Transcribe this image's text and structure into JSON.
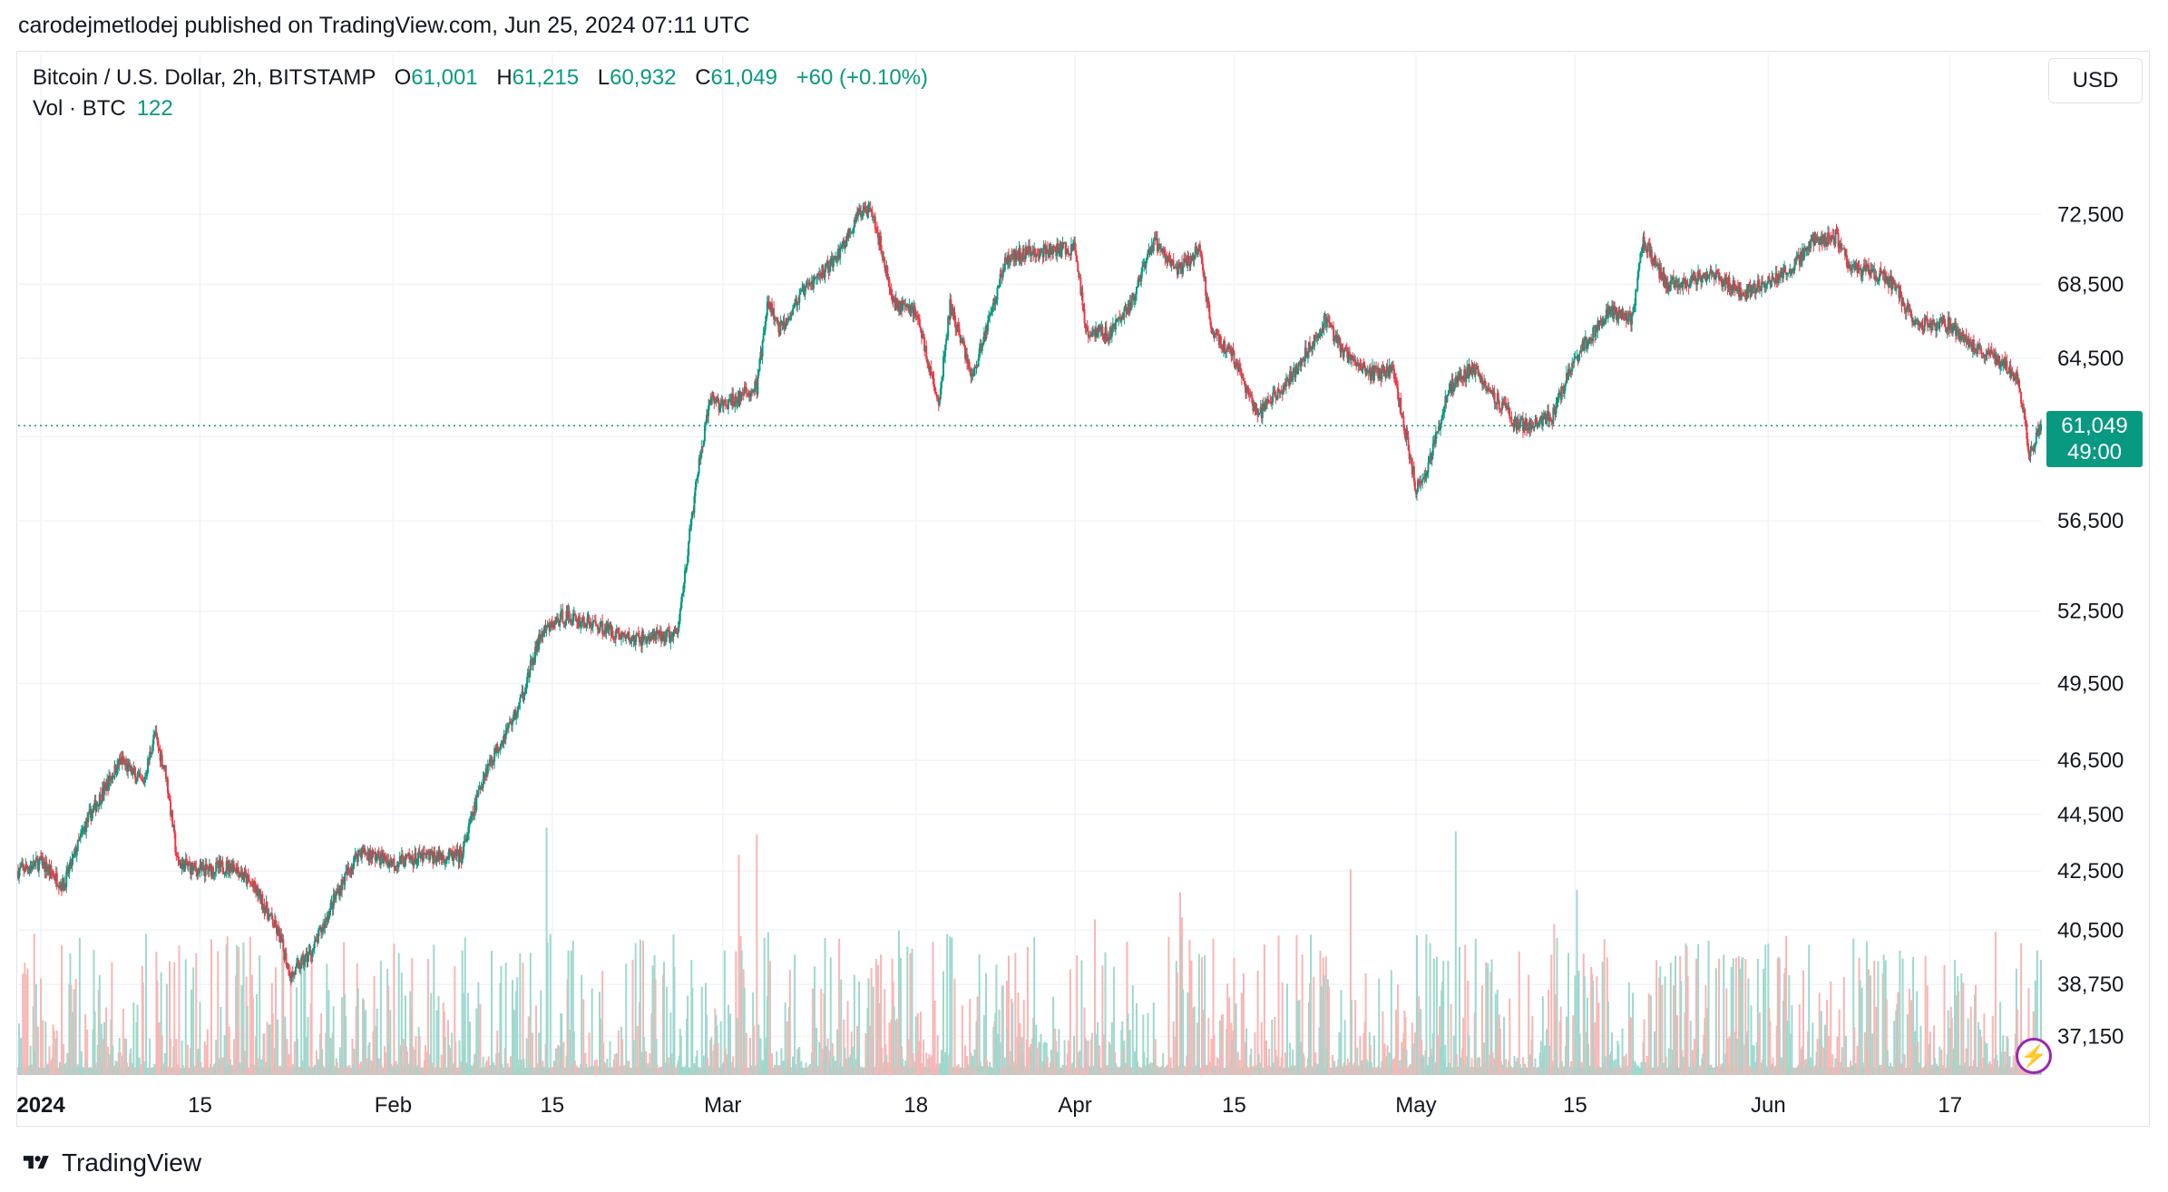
{
  "header": {
    "published_line": "carodejmetlodej published on TradingView.com, Jun 25, 2024 07:11 UTC"
  },
  "legend": {
    "symbol": "Bitcoin / U.S. Dollar, 2h, BITSTAMP",
    "open_key": "O",
    "open": "61,001",
    "high_key": "H",
    "high": "61,215",
    "low_key": "L",
    "low": "60,932",
    "close_key": "C",
    "close": "61,049",
    "change": "+60 (+0.10%)",
    "volume_label": "Vol · BTC",
    "volume_value": "122"
  },
  "currency_button": "USD",
  "price_badge": {
    "price": "61,049",
    "countdown": "49:00"
  },
  "footer": {
    "brand": "TradingView"
  },
  "colors": {
    "up": "#089981",
    "down": "#f23645",
    "up_vol": "#9fd8cd",
    "down_vol": "#f7b6b5",
    "grid": "#f0f3fa"
  },
  "chart_data": {
    "type": "candlestick",
    "title": "Bitcoin / U.S. Dollar, 2h, BITSTAMP",
    "y_scale": "log",
    "ylim": [
      36000,
      79000
    ],
    "y_ticks": [
      72500,
      68500,
      64500,
      60500,
      56500,
      52500,
      49500,
      46500,
      44500,
      42500,
      40500,
      38750,
      37150
    ],
    "y_tick_labels": [
      "72,500",
      "68,500",
      "64,500",
      "",
      "56,500",
      "52,500",
      "49,500",
      "46,500",
      "44,500",
      "42,500",
      "40,500",
      "38,750",
      "37,150"
    ],
    "x_range": [
      "2023-12-30",
      "2024-06-25"
    ],
    "x_ticks": [
      {
        "date": "2024-01-01",
        "label": "2024"
      },
      {
        "date": "2024-01-15",
        "label": "15"
      },
      {
        "date": "2024-02-01",
        "label": "Feb"
      },
      {
        "date": "2024-02-15",
        "label": "15"
      },
      {
        "date": "2024-03-01",
        "label": "Mar"
      },
      {
        "date": "2024-03-18",
        "label": "18"
      },
      {
        "date": "2024-04-01",
        "label": "Apr"
      },
      {
        "date": "2024-04-15",
        "label": "15"
      },
      {
        "date": "2024-05-01",
        "label": "May"
      },
      {
        "date": "2024-05-15",
        "label": "15"
      },
      {
        "date": "2024-06-01",
        "label": "Jun"
      },
      {
        "date": "2024-06-17",
        "label": "17"
      }
    ],
    "last_price": 61049,
    "price_path": [
      [
        "2023-12-30",
        42500
      ],
      [
        "2024-01-01",
        42800
      ],
      [
        "2024-01-03",
        42000
      ],
      [
        "2024-01-05",
        44200
      ],
      [
        "2024-01-08",
        46500
      ],
      [
        "2024-01-10",
        45600
      ],
      [
        "2024-01-11",
        47500
      ],
      [
        "2024-01-12",
        46000
      ],
      [
        "2024-01-13",
        42800
      ],
      [
        "2024-01-15",
        42500
      ],
      [
        "2024-01-18",
        42700
      ],
      [
        "2024-01-20",
        41800
      ],
      [
        "2024-01-22",
        40300
      ],
      [
        "2024-01-23",
        39000
      ],
      [
        "2024-01-25",
        39900
      ],
      [
        "2024-01-27",
        41700
      ],
      [
        "2024-01-29",
        43200
      ],
      [
        "2024-02-01",
        42800
      ],
      [
        "2024-02-04",
        43000
      ],
      [
        "2024-02-07",
        43000
      ],
      [
        "2024-02-09",
        46000
      ],
      [
        "2024-02-12",
        48500
      ],
      [
        "2024-02-14",
        51500
      ],
      [
        "2024-02-16",
        52300
      ],
      [
        "2024-02-19",
        51900
      ],
      [
        "2024-02-22",
        51300
      ],
      [
        "2024-02-26",
        51500
      ],
      [
        "2024-02-27",
        55500
      ],
      [
        "2024-02-28",
        59500
      ],
      [
        "2024-02-29",
        62500
      ],
      [
        "2024-03-01",
        62000
      ],
      [
        "2024-03-04",
        63000
      ],
      [
        "2024-03-05",
        67500
      ],
      [
        "2024-03-06",
        66000
      ],
      [
        "2024-03-08",
        68000
      ],
      [
        "2024-03-11",
        70000
      ],
      [
        "2024-03-13",
        72500
      ],
      [
        "2024-03-14",
        73200
      ],
      [
        "2024-03-16",
        67500
      ],
      [
        "2024-03-18",
        67000
      ],
      [
        "2024-03-20",
        62000
      ],
      [
        "2024-03-21",
        67300
      ],
      [
        "2024-03-23",
        63500
      ],
      [
        "2024-03-26",
        70000
      ],
      [
        "2024-03-28",
        70300
      ],
      [
        "2024-04-01",
        70500
      ],
      [
        "2024-04-02",
        66000
      ],
      [
        "2024-04-04",
        65800
      ],
      [
        "2024-04-06",
        67500
      ],
      [
        "2024-04-08",
        71000
      ],
      [
        "2024-04-10",
        69200
      ],
      [
        "2024-04-12",
        70500
      ],
      [
        "2024-04-13",
        66000
      ],
      [
        "2024-04-15",
        64500
      ],
      [
        "2024-04-17",
        61500
      ],
      [
        "2024-04-20",
        63500
      ],
      [
        "2024-04-23",
        66500
      ],
      [
        "2024-04-25",
        64500
      ],
      [
        "2024-04-27",
        63700
      ],
      [
        "2024-04-29",
        63800
      ],
      [
        "2024-05-01",
        58000
      ],
      [
        "2024-05-02",
        59000
      ],
      [
        "2024-05-04",
        63000
      ],
      [
        "2024-05-06",
        64000
      ],
      [
        "2024-05-08",
        62500
      ],
      [
        "2024-05-10",
        61000
      ],
      [
        "2024-05-13",
        61500
      ],
      [
        "2024-05-15",
        64500
      ],
      [
        "2024-05-18",
        67000
      ],
      [
        "2024-05-20",
        66500
      ],
      [
        "2024-05-21",
        71000
      ],
      [
        "2024-05-23",
        68500
      ],
      [
        "2024-05-27",
        69000
      ],
      [
        "2024-05-30",
        68000
      ],
      [
        "2024-06-03",
        69300
      ],
      [
        "2024-06-05",
        71000
      ],
      [
        "2024-06-07",
        71200
      ],
      [
        "2024-06-08",
        69500
      ],
      [
        "2024-06-11",
        69000
      ],
      [
        "2024-06-12",
        68500
      ],
      [
        "2024-06-14",
        66300
      ],
      [
        "2024-06-17",
        66300
      ],
      [
        "2024-06-19",
        65100
      ],
      [
        "2024-06-21",
        64500
      ],
      [
        "2024-06-23",
        63500
      ],
      [
        "2024-06-24",
        59500
      ],
      [
        "2024-06-25",
        61049
      ]
    ]
  }
}
